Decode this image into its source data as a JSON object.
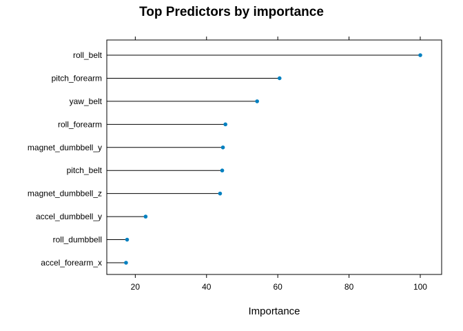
{
  "chart_data": {
    "type": "dotplot",
    "title": "Top Predictors by importance",
    "xlabel": "Importance",
    "ylabel": "",
    "xlim": [
      12,
      106
    ],
    "x_ticks": [
      20,
      40,
      60,
      80,
      100
    ],
    "x_tick_labels": [
      "20",
      "40",
      "60",
      "80",
      "100"
    ],
    "categories": [
      "roll_belt",
      "pitch_forearm",
      "yaw_belt",
      "roll_forearm",
      "magnet_dumbbell_y",
      "pitch_belt",
      "magnet_dumbbell_z",
      "accel_dumbbell_y",
      "roll_dumbbell",
      "accel_forearm_x"
    ],
    "values": [
      100,
      60.5,
      54.2,
      45.3,
      44.6,
      44.4,
      43.8,
      22.9,
      17.7,
      17.4
    ],
    "grid": false,
    "point_color": "#0080c0",
    "line_color": "#000000"
  }
}
